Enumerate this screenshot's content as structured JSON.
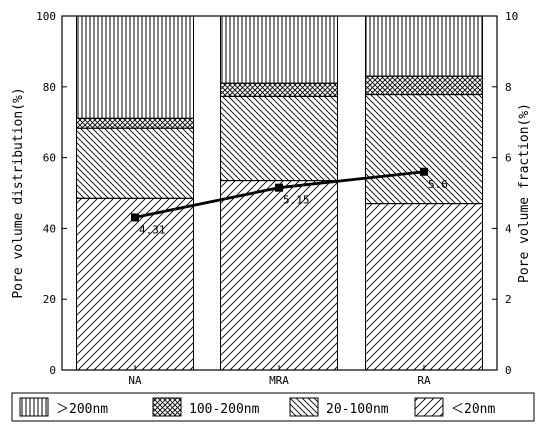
{
  "chart_data": {
    "type": "bar",
    "stacked": true,
    "categories": [
      "NA",
      "MRA",
      "RA"
    ],
    "series": [
      {
        "name": "<20nm",
        "values": [
          48.5,
          53.5,
          47
        ]
      },
      {
        "name": "20-100nm",
        "values": [
          19.8,
          23.8,
          30.8
        ]
      },
      {
        "name": "100-200nm",
        "values": [
          2.8,
          3.7,
          5.2
        ]
      },
      {
        "name": ">200nm",
        "values": [
          28.9,
          19,
          17
        ]
      }
    ],
    "line": {
      "values": [
        4.31,
        5.15,
        5.6
      ],
      "labels": [
        "4.31",
        "5.15",
        "5.6"
      ],
      "axis": "right"
    },
    "ylabel": "Pore volume distribution(%)",
    "y2label": "Pore volume fraction(%)",
    "ylim": [
      0,
      100
    ],
    "y2lim": [
      0,
      10
    ],
    "yticks": [
      "0",
      "20",
      "40",
      "60",
      "80",
      "100"
    ],
    "y2ticks": [
      "0",
      "2",
      "4",
      "6",
      "8",
      "10"
    ],
    "legend_position": "bottom",
    "legend": [
      {
        "series": ">200nm",
        "label": "＞200nm"
      },
      {
        "series": "100-200nm",
        "label": "100-200nm"
      },
      {
        "series": "20-100nm",
        "label": "20-100nm"
      },
      {
        "series": "<20nm",
        "label": "＜20nm"
      }
    ],
    "grid": false
  }
}
